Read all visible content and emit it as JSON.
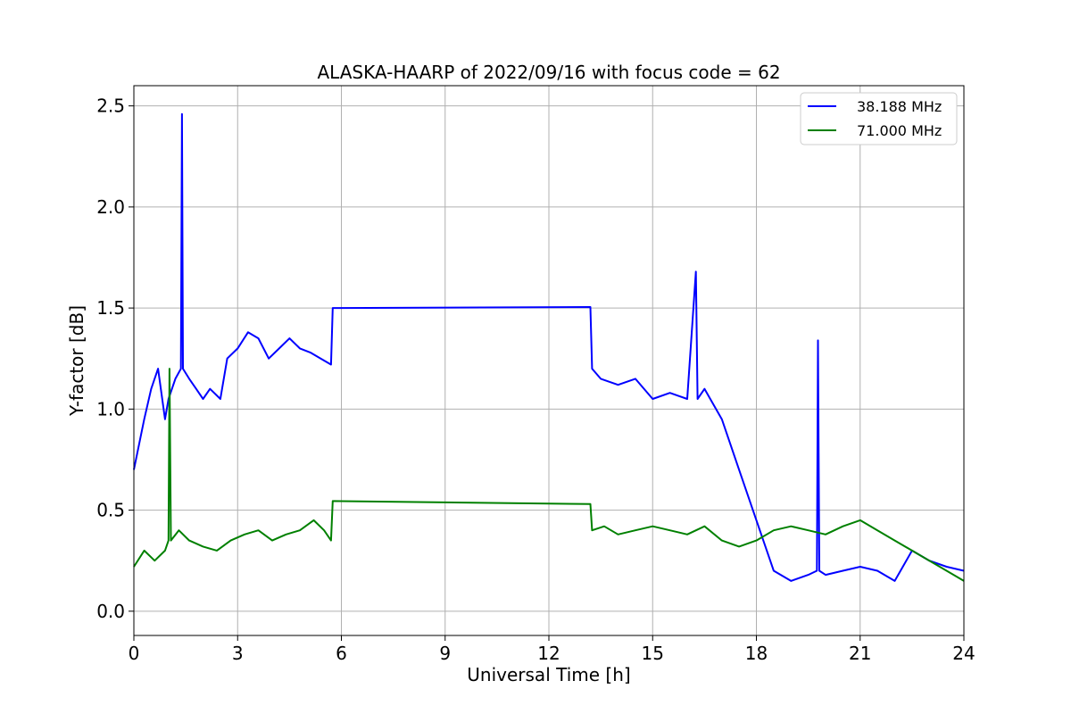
{
  "chart_data": {
    "type": "line",
    "title": "ALASKA-HAARP of 2022/09/16 with focus code = 62",
    "xlabel": "Universal Time [h]",
    "ylabel": "Y-factor [dB]",
    "xlim": [
      0,
      24
    ],
    "ylim": [
      -0.12,
      2.6
    ],
    "xticks": [
      0,
      3,
      6,
      9,
      12,
      15,
      18,
      21,
      24
    ],
    "yticks": [
      0.0,
      0.5,
      1.0,
      1.5,
      2.0,
      2.5
    ],
    "xtick_labels": [
      "0",
      "3",
      "6",
      "9",
      "12",
      "15",
      "18",
      "21",
      "24"
    ],
    "ytick_labels": [
      "0.0",
      "0.5",
      "1.0",
      "1.5",
      "2.0",
      "2.5"
    ],
    "grid": true,
    "legend_position": "top-right",
    "series": [
      {
        "name": "38.188 MHz",
        "color": "#0000ff",
        "x": [
          0,
          0.3,
          0.5,
          0.7,
          0.9,
          1.0,
          1.2,
          1.36,
          1.39,
          1.42,
          1.6,
          1.8,
          2.0,
          2.2,
          2.5,
          2.7,
          3.0,
          3.3,
          3.6,
          3.9,
          4.2,
          4.5,
          4.8,
          5.1,
          5.4,
          5.7,
          5.75,
          13.2,
          13.25,
          13.5,
          14.0,
          14.5,
          15.0,
          15.5,
          16.0,
          16.25,
          16.3,
          16.5,
          17.0,
          17.5,
          18.0,
          18.5,
          19.0,
          19.5,
          19.75,
          19.78,
          19.82,
          20.0,
          20.5,
          21.0,
          21.5,
          22.0,
          22.5,
          23.0,
          23.5,
          24.0
        ],
        "y": [
          0.7,
          0.95,
          1.1,
          1.2,
          0.95,
          1.05,
          1.15,
          1.2,
          2.46,
          1.2,
          1.15,
          1.1,
          1.05,
          1.1,
          1.05,
          1.25,
          1.3,
          1.38,
          1.35,
          1.25,
          1.3,
          1.35,
          1.3,
          1.28,
          1.25,
          1.22,
          1.5,
          1.505,
          1.2,
          1.15,
          1.12,
          1.15,
          1.05,
          1.08,
          1.05,
          1.68,
          1.05,
          1.1,
          0.95,
          0.7,
          0.45,
          0.2,
          0.15,
          0.18,
          0.2,
          1.34,
          0.2,
          0.18,
          0.2,
          0.22,
          0.2,
          0.15,
          0.3,
          0.25,
          0.22,
          0.2
        ]
      },
      {
        "name": "71.000 MHz",
        "color": "#008000",
        "x": [
          0,
          0.3,
          0.6,
          0.9,
          1.0,
          1.03,
          1.07,
          1.3,
          1.6,
          2.0,
          2.4,
          2.8,
          3.2,
          3.6,
          4.0,
          4.4,
          4.8,
          5.2,
          5.5,
          5.7,
          5.75,
          13.2,
          13.25,
          13.6,
          14.0,
          14.5,
          15.0,
          15.5,
          16.0,
          16.5,
          17.0,
          17.5,
          18.0,
          18.5,
          19.0,
          19.5,
          20.0,
          20.5,
          21.0,
          21.5,
          22.0,
          22.5,
          23.0,
          23.5,
          24.0
        ],
        "y": [
          0.22,
          0.3,
          0.25,
          0.3,
          0.35,
          1.2,
          0.35,
          0.4,
          0.35,
          0.32,
          0.3,
          0.35,
          0.38,
          0.4,
          0.35,
          0.38,
          0.4,
          0.45,
          0.4,
          0.35,
          0.545,
          0.53,
          0.4,
          0.42,
          0.38,
          0.4,
          0.42,
          0.4,
          0.38,
          0.42,
          0.35,
          0.32,
          0.35,
          0.4,
          0.42,
          0.4,
          0.38,
          0.42,
          0.45,
          0.4,
          0.35,
          0.3,
          0.25,
          0.2,
          0.15
        ]
      }
    ]
  }
}
